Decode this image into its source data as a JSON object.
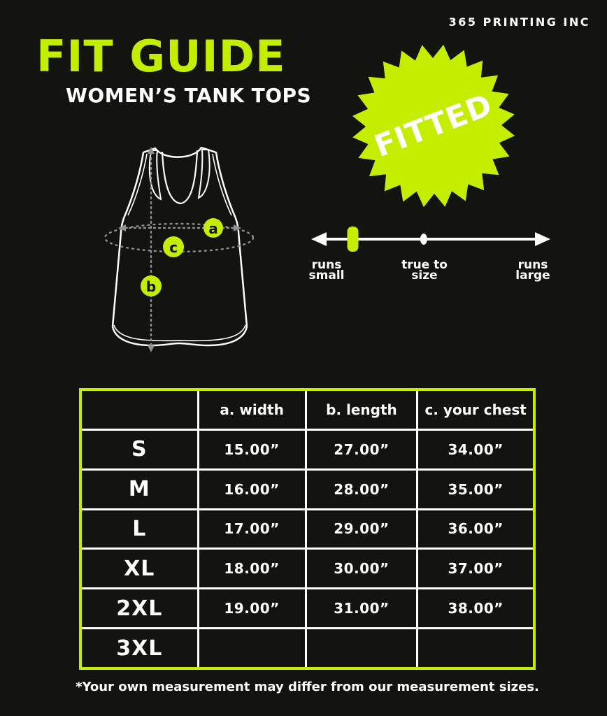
{
  "brand": "365 PRINTING INC",
  "header": {
    "title": "FIT GUIDE",
    "subtitle": "WOMEN’S TANK TOPS"
  },
  "badge": {
    "label": "FITTED"
  },
  "fit_scale": {
    "labels": [
      {
        "line1": "runs",
        "line2": "small"
      },
      {
        "line1": "true to",
        "line2": "size"
      },
      {
        "line1": "runs",
        "line2": "large"
      }
    ],
    "marker_fraction": 0.17,
    "center_dot_fraction": 0.47
  },
  "diagram": {
    "point_a": "a",
    "point_b": "b",
    "point_c": "c"
  },
  "size_chart": {
    "columns": [
      "",
      "a. width",
      "b. length",
      "c. your chest"
    ],
    "rows": [
      {
        "size": "S",
        "width": "15.00”",
        "length": "27.00”",
        "chest": "34.00”"
      },
      {
        "size": "M",
        "width": "16.00”",
        "length": "28.00”",
        "chest": "35.00”"
      },
      {
        "size": "L",
        "width": "17.00”",
        "length": "29.00”",
        "chest": "36.00”"
      },
      {
        "size": "XL",
        "width": "18.00”",
        "length": "30.00”",
        "chest": "37.00”"
      },
      {
        "size": "2XL",
        "width": "19.00”",
        "length": "31.00”",
        "chest": "38.00”"
      },
      {
        "size": "3XL",
        "width": "",
        "length": "",
        "chest": ""
      }
    ]
  },
  "footnote": "*Your own measurement may differ from our measurement sizes.",
  "colors": {
    "accent": "#c3ee00",
    "background": "#131310",
    "text": "#ffffff",
    "dash": "#8f8f8f",
    "ink": "#131310"
  }
}
